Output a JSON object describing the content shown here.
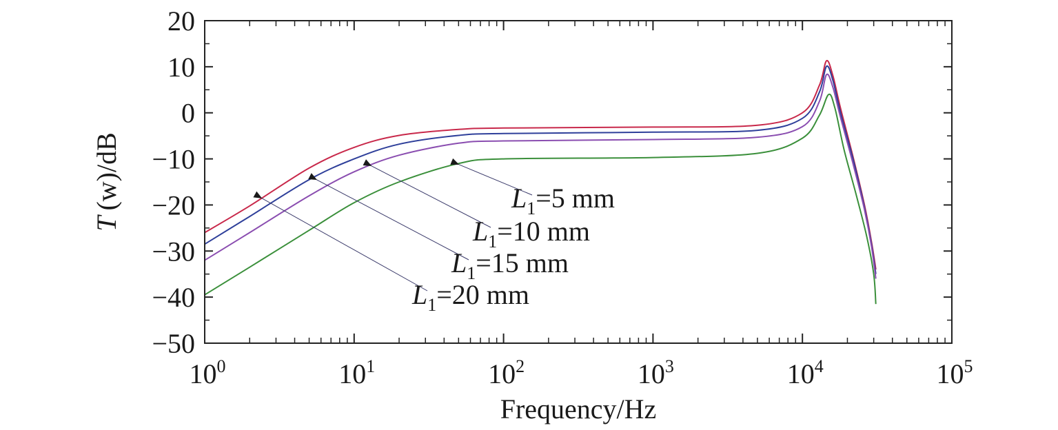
{
  "chart_data": {
    "type": "line",
    "xlabel": "Frequency/Hz",
    "ylabel_main": "T",
    "ylabel_var": "(w)",
    "ylabel_unit": "/dB",
    "x_scale": "log",
    "xlim": [
      1,
      100000
    ],
    "ylim": [
      -50,
      20
    ],
    "x_ticks": [
      {
        "value": 1,
        "base": "10",
        "exp": "0"
      },
      {
        "value": 10,
        "base": "10",
        "exp": "1"
      },
      {
        "value": 100,
        "base": "10",
        "exp": "2"
      },
      {
        "value": 1000,
        "base": "10",
        "exp": "3"
      },
      {
        "value": 10000,
        "base": "10",
        "exp": "4"
      },
      {
        "value": 100000,
        "base": "10",
        "exp": "5"
      }
    ],
    "y_ticks": [
      "20",
      "10",
      "0",
      "−10",
      "−20",
      "−30",
      "−40",
      "−50"
    ],
    "y_tick_values": [
      20,
      10,
      0,
      -10,
      -20,
      -30,
      -40,
      -50
    ],
    "grid": false,
    "legend": "none",
    "series": [
      {
        "color": "#c8284a",
        "x": [
          1,
          2,
          5,
          10,
          20,
          50,
          100,
          1000,
          5000,
          10000,
          13000,
          14500,
          16000,
          18000,
          22000,
          26000,
          29000,
          31000
        ],
        "y": [
          -26,
          -20.2,
          -12,
          -7.5,
          -4.9,
          -3.6,
          -3.3,
          -3.1,
          -2.7,
          0,
          6,
          11.3,
          8,
          1,
          -10,
          -20,
          -28,
          -34
        ]
      },
      {
        "color": "#2e3f9a",
        "x": [
          1,
          2,
          5,
          10,
          20,
          50,
          100,
          1000,
          5000,
          10000,
          13000,
          14500,
          16000,
          18000,
          22000,
          26000,
          29000,
          31000
        ],
        "y": [
          -28.5,
          -22.5,
          -14.5,
          -10,
          -6.8,
          -4.9,
          -4.5,
          -4.2,
          -3.8,
          -1.2,
          4.5,
          10.1,
          7,
          0,
          -10.5,
          -20.5,
          -28.5,
          -35
        ]
      },
      {
        "color": "#8a4db0",
        "x": [
          1,
          2,
          5,
          10,
          20,
          50,
          100,
          1000,
          5000,
          10000,
          13000,
          14500,
          16000,
          18000,
          22000,
          26000,
          29000,
          31000
        ],
        "y": [
          -32,
          -26,
          -18,
          -12.8,
          -9.2,
          -6.6,
          -6.1,
          -5.8,
          -5.3,
          -3,
          2.5,
          8.3,
          5.5,
          -1,
          -11.5,
          -21,
          -29,
          -36
        ]
      },
      {
        "color": "#3a8f3a",
        "x": [
          1,
          2,
          5,
          10,
          20,
          50,
          100,
          1000,
          5000,
          10000,
          13000,
          15000,
          16500,
          19000,
          23000,
          27000,
          30000,
          31000
        ],
        "y": [
          -39.5,
          -33.5,
          -25.5,
          -19.5,
          -15,
          -11,
          -10,
          -9.7,
          -8.8,
          -5.5,
          -0.5,
          4,
          1,
          -8,
          -18,
          -27,
          -35,
          -41.5
        ]
      }
    ],
    "annotations": [
      {
        "label_main": "L",
        "label_sub": "1",
        "text": "=5 mm",
        "arrow_x": 50,
        "arrow_y": -11.2
      },
      {
        "label_main": "L",
        "label_sub": "1",
        "text": "=10 mm",
        "arrow_x": 13,
        "arrow_y": -11.5
      },
      {
        "label_main": "L",
        "label_sub": "1",
        "text": "=15 mm",
        "arrow_x": 5.6,
        "arrow_y": -14.5
      },
      {
        "label_main": "L",
        "label_sub": "1",
        "text": "=20 mm",
        "arrow_x": 2.4,
        "arrow_y": -18.5
      }
    ]
  }
}
